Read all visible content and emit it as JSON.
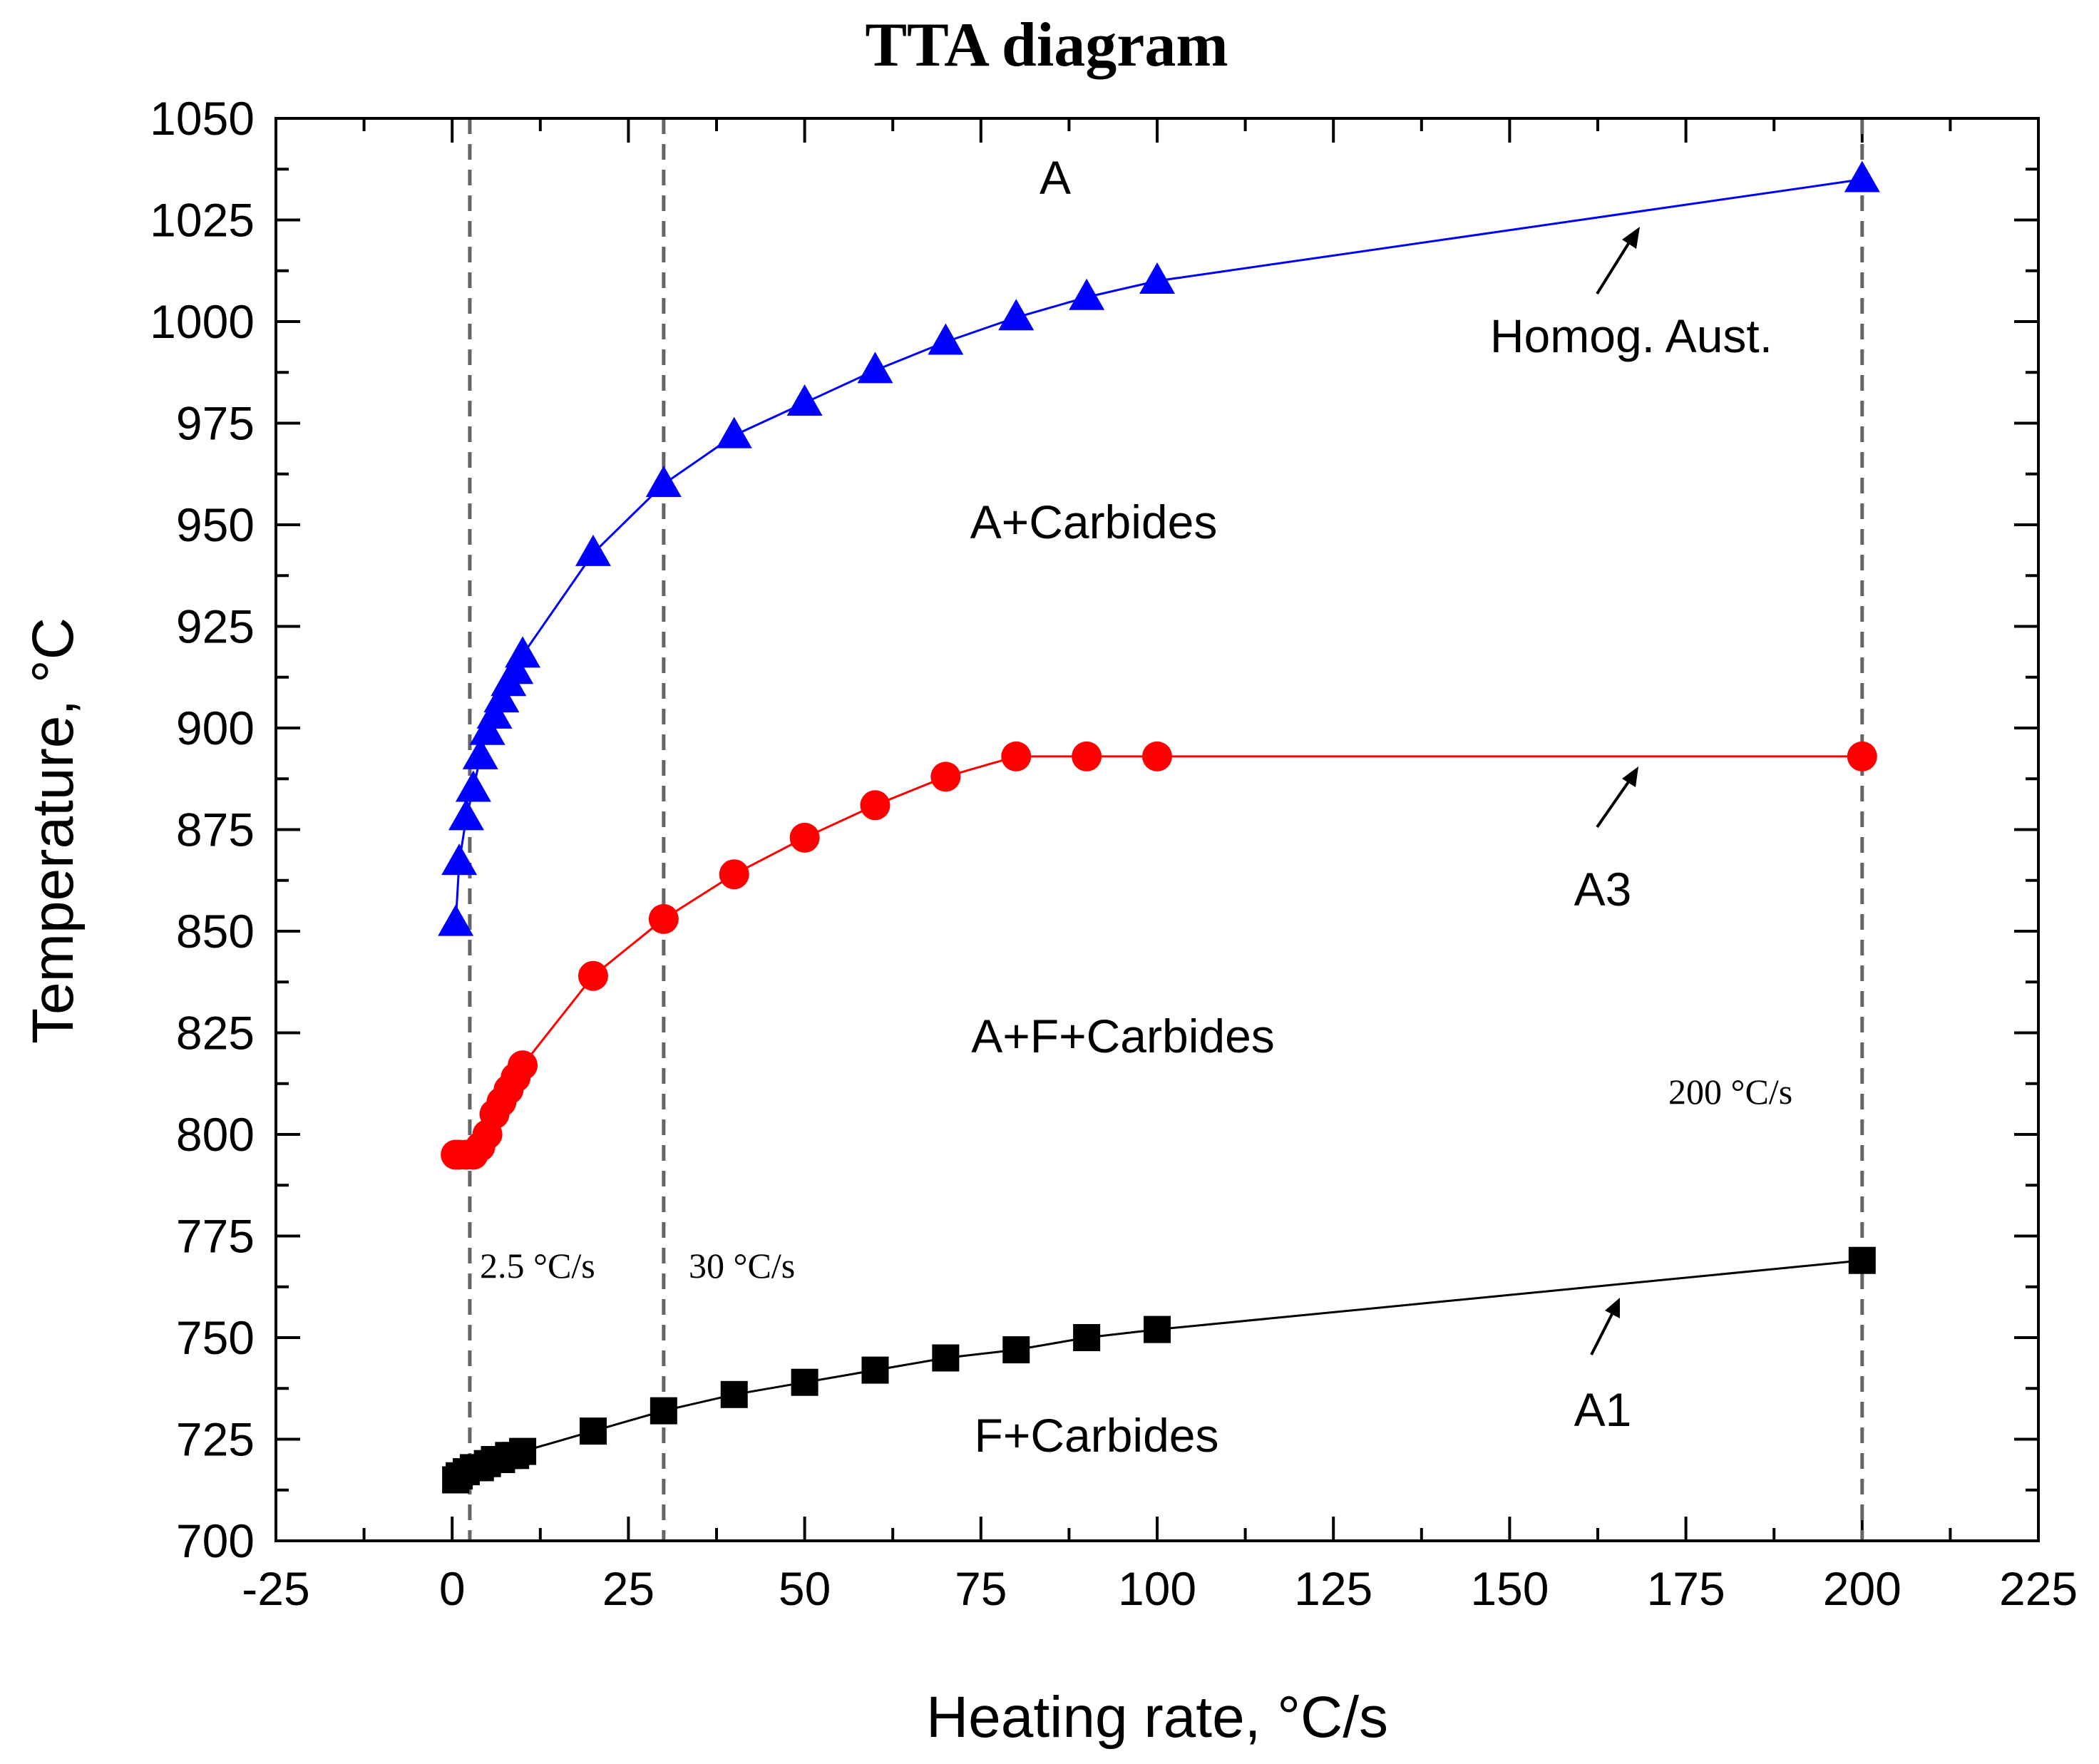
{
  "chart_data": {
    "type": "line",
    "title": "TTA diagram",
    "xlabel": "Heating rate, °C/s",
    "ylabel": "Temperature, °C",
    "xlim": [
      -25,
      225
    ],
    "ylim": [
      700,
      1050
    ],
    "x_ticks": [
      -25,
      0,
      25,
      50,
      75,
      100,
      125,
      150,
      175,
      200,
      225
    ],
    "y_ticks": [
      700,
      725,
      750,
      775,
      800,
      825,
      850,
      875,
      900,
      925,
      950,
      975,
      1000,
      1025,
      1050
    ],
    "grid": false,
    "series": [
      {
        "name": "A1",
        "color": "#000000",
        "marker": "square",
        "x": [
          0.5,
          1,
          2,
          3,
          4,
          5,
          6,
          7,
          8,
          9,
          10,
          20,
          30,
          40,
          50,
          60,
          70,
          80,
          90,
          100,
          200
        ],
        "y": [
          715,
          716,
          717,
          718,
          718,
          719,
          720,
          720,
          721,
          721,
          722,
          727,
          732,
          736,
          739,
          742,
          745,
          747,
          750,
          752,
          769
        ]
      },
      {
        "name": "A3",
        "color": "#ff0000",
        "marker": "circle",
        "x": [
          0.5,
          1,
          2,
          3,
          4,
          5,
          6,
          7,
          8,
          9,
          10,
          20,
          30,
          40,
          50,
          60,
          70,
          80,
          90,
          100,
          200
        ],
        "y": [
          795,
          795,
          795,
          795,
          797,
          800,
          805,
          808,
          811,
          814,
          817,
          839,
          853,
          864,
          873,
          881,
          888,
          893,
          893,
          893,
          893
        ]
      },
      {
        "name": "Homog. Aust.",
        "color": "#0000ff",
        "marker": "triangle",
        "x": [
          0.5,
          1,
          2,
          3,
          4,
          5,
          6,
          7,
          8,
          9,
          10,
          20,
          30,
          40,
          50,
          60,
          70,
          80,
          90,
          100,
          200
        ],
        "y": [
          852,
          867,
          878,
          885,
          893,
          899,
          903,
          907,
          911,
          914,
          918,
          943,
          960,
          972,
          980,
          988,
          995,
          1001,
          1006,
          1010,
          1035
        ]
      }
    ],
    "vertical_lines": [
      {
        "x": 2.5,
        "label": "2.5 °C/s"
      },
      {
        "x": 30,
        "label": "30 °C/s"
      },
      {
        "x": 200,
        "label": "200 °C/s"
      }
    ],
    "region_labels": [
      "A",
      "A+Carbides",
      "A+F+Carbides",
      "F+Carbides"
    ],
    "curve_labels": [
      "Homog. Aust.",
      "A3",
      "A1"
    ]
  }
}
